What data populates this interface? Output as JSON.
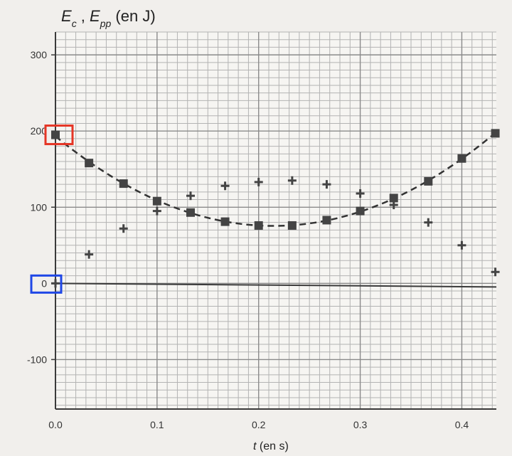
{
  "chart_data": {
    "type": "scatter",
    "title": {
      "parts": [
        {
          "text": "E",
          "italic": true
        },
        {
          "text": "c",
          "italic": true,
          "sub": true
        },
        {
          "text": " , ",
          "italic": false
        },
        {
          "text": "E",
          "italic": true
        },
        {
          "text": "pp",
          "italic": true,
          "sub": true
        },
        {
          "text": " (en J)",
          "italic": false
        }
      ]
    },
    "xlabel": {
      "parts": [
        {
          "text": "t",
          "italic": true
        },
        {
          "text": " (en s)",
          "italic": false
        }
      ]
    },
    "xlim": [
      0,
      0.434
    ],
    "ylim": [
      -165,
      330
    ],
    "x_ticks": [
      {
        "value": 0.0,
        "label": "0.0"
      },
      {
        "value": 0.1,
        "label": "0.1"
      },
      {
        "value": 0.2,
        "label": "0.2"
      },
      {
        "value": 0.3,
        "label": "0.3"
      },
      {
        "value": 0.4,
        "label": "0.4"
      }
    ],
    "y_ticks": [
      {
        "value": 300,
        "label": "300"
      },
      {
        "value": 200,
        "label": "200"
      },
      {
        "value": 100,
        "label": "100"
      },
      {
        "value": 0,
        "label": "0"
      },
      {
        "value": -100,
        "label": "-100"
      }
    ],
    "grid": true,
    "grid_step_x": 0.01,
    "grid_step_y": 10,
    "series": [
      {
        "marker": "square",
        "color": "#444444",
        "fit": "dashed-parabola",
        "x": [
          0.0,
          0.033,
          0.067,
          0.1,
          0.133,
          0.167,
          0.2,
          0.233,
          0.267,
          0.3,
          0.333,
          0.367,
          0.4,
          0.433
        ],
        "y": [
          195,
          158,
          131,
          108,
          93,
          81,
          76,
          76,
          83,
          95,
          112,
          134,
          164,
          197
        ]
      },
      {
        "marker": "plus",
        "color": "#444444",
        "x": [
          0.0,
          0.033,
          0.067,
          0.1,
          0.133,
          0.167,
          0.2,
          0.233,
          0.267,
          0.3,
          0.333,
          0.367,
          0.4,
          0.433
        ],
        "y": [
          0,
          38,
          72,
          95,
          115,
          128,
          133,
          135,
          130,
          118,
          103,
          80,
          50,
          15
        ]
      }
    ],
    "highlights": [
      {
        "around": "point",
        "series": 0,
        "index": 0,
        "color": "#e53525"
      },
      {
        "around": "y-tick",
        "value": 0,
        "color": "#1f47e6"
      }
    ]
  }
}
